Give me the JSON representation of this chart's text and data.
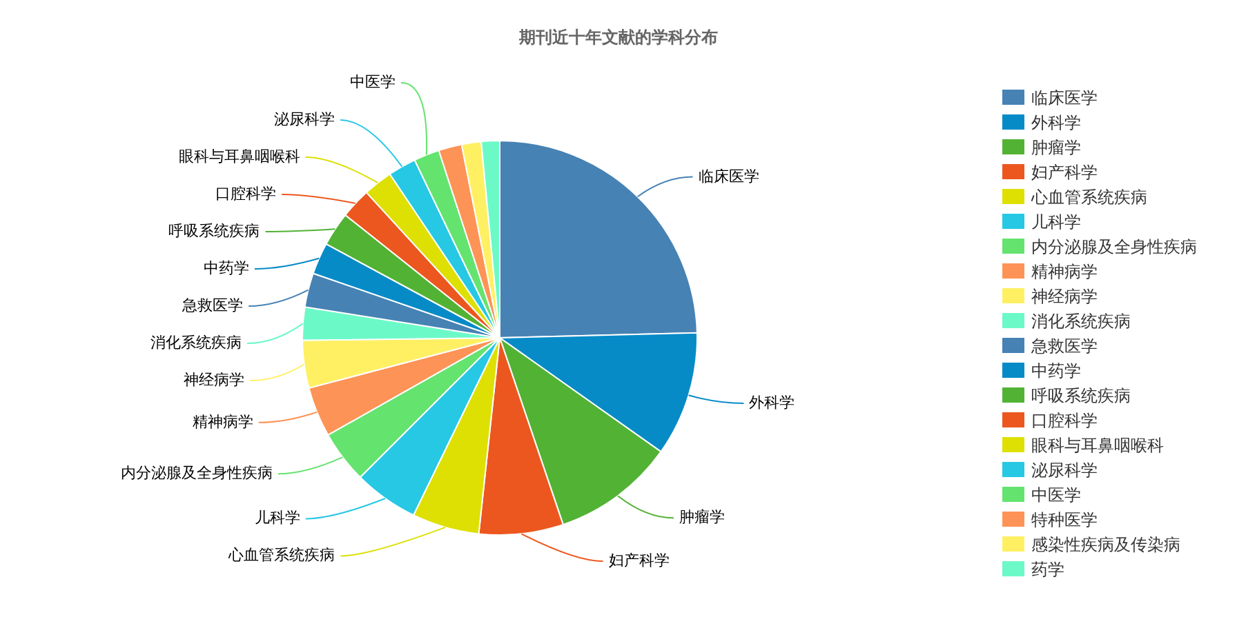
{
  "chart_data": {
    "type": "pie",
    "title": "期刊近十年文献的学科分布",
    "categories": [
      "临床医学",
      "外科学",
      "肿瘤学",
      "妇产科学",
      "心血管系统疾病",
      "儿科学",
      "内分泌腺及全身性疾病",
      "精神病学",
      "神经病学",
      "消化系统疾病",
      "急救医学",
      "中药学",
      "呼吸系统疾病",
      "口腔科学",
      "眼科与耳鼻咽喉科",
      "泌尿科学",
      "中医学",
      "特种医学",
      "感染性疾病及传染病",
      "药学"
    ],
    "values": [
      24.6,
      10.2,
      10.0,
      6.9,
      5.5,
      5.3,
      4.3,
      4.1,
      3.9,
      2.7,
      2.8,
      2.6,
      2.8,
      2.5,
      2.4,
      2.3,
      2.1,
      1.9,
      1.6,
      1.5
    ],
    "colors": [
      "#4682b4",
      "#078bc7",
      "#52b234",
      "#ec571f",
      "#dde002",
      "#26c8e4",
      "#65e36f",
      "#fd9356",
      "#fff063",
      "#6cf9c8",
      "#4682b4",
      "#078bc7",
      "#52b234",
      "#ec571f",
      "#dde002",
      "#26c8e4",
      "#65e36f",
      "#fd9356",
      "#fff063",
      "#6cf9c8"
    ],
    "legend": "right"
  }
}
